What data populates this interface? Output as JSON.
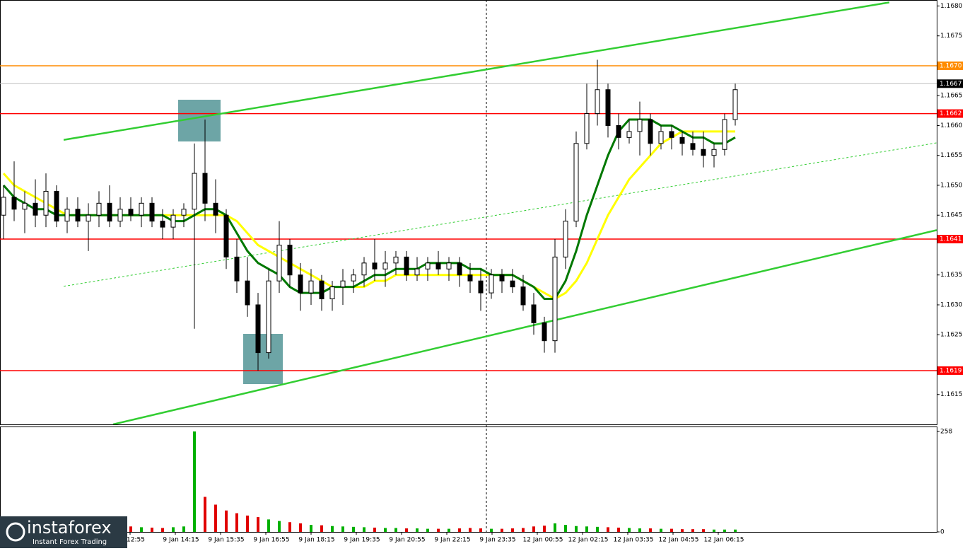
{
  "chart_data": {
    "type": "candlestick",
    "ylim": [
      1.161,
      1.1681
    ],
    "yticks": [
      {
        "value": 1.168,
        "label": "1.1680"
      },
      1.1675,
      1.1665,
      {
        "value": 1.166,
        "label": "1.1660"
      },
      1.1655,
      {
        "value": 1.165,
        "label": "1.1650"
      },
      1.1645,
      1.1635,
      {
        "value": 1.163,
        "label": "1.1630"
      },
      1.1625,
      1.1615
    ],
    "levels": [
      {
        "value": 1.167,
        "label": "1.1670",
        "color": "#ff8c00"
      },
      {
        "value": 1.1667,
        "label": "1.1667",
        "color": "#000000"
      },
      {
        "value": 1.1662,
        "label": "1.1662",
        "color": "#ff0000"
      },
      {
        "value": 1.1641,
        "label": "1.1641",
        "color": "#ff0000"
      },
      {
        "value": 1.1619,
        "label": "1.1619",
        "color": "#ff0000"
      }
    ],
    "xtick_labels": [
      "12:55",
      "9 Jan 14:15",
      "9 Jan 15:35",
      "9 Jan 16:55",
      "9 Jan 18:15",
      "9 Jan 19:35",
      "9 Jan 20:55",
      "9 Jan 22:15",
      "9 Jan 23:35",
      "12 Jan 00:55",
      "12 Jan 02:15",
      "12 Jan 03:35",
      "12 Jan 04:55",
      "12 Jan 06:15"
    ],
    "open": [
      1.1645,
      1.1648,
      1.1646,
      1.1647,
      1.1645,
      1.1649,
      1.1644,
      1.1646,
      1.1644,
      1.1645,
      1.1647,
      1.1644,
      1.1646,
      1.1645,
      1.1647,
      1.1644,
      1.1643,
      1.1645,
      1.1646,
      1.1652,
      1.1647,
      1.1645,
      1.1638,
      1.1634,
      1.163,
      1.1622,
      1.1634,
      1.164,
      1.1635,
      1.1632,
      1.1634,
      1.1631,
      1.1633,
      1.1634,
      1.1635,
      1.1637,
      1.1636,
      1.1637,
      1.1638,
      1.1635,
      1.1636,
      1.1637,
      1.1636,
      1.1637,
      1.1635,
      1.1634,
      1.1632,
      1.1635,
      1.1634,
      1.1633,
      1.163,
      1.1627,
      1.1624,
      1.1638,
      1.1644,
      1.1657,
      1.1662,
      1.1666,
      1.166,
      1.1658,
      1.1659,
      1.1661,
      1.1657,
      1.1659,
      1.1658,
      1.1657,
      1.1656,
      1.1655,
      1.1656,
      1.1661
    ],
    "high": [
      1.165,
      1.1654,
      1.1649,
      1.1651,
      1.1652,
      1.165,
      1.1648,
      1.1648,
      1.1647,
      1.1649,
      1.165,
      1.1648,
      1.1648,
      1.1648,
      1.1648,
      1.1646,
      1.1646,
      1.1647,
      1.1657,
      1.1661,
      1.1651,
      1.1646,
      1.1641,
      1.1638,
      1.1632,
      1.1636,
      1.1644,
      1.1641,
      1.1637,
      1.1636,
      1.1635,
      1.1634,
      1.1636,
      1.1636,
      1.1638,
      1.1641,
      1.1639,
      1.1639,
      1.1639,
      1.1638,
      1.1638,
      1.1639,
      1.1638,
      1.1638,
      1.1637,
      1.1636,
      1.1636,
      1.1636,
      1.1636,
      1.1635,
      1.1632,
      1.1628,
      1.1641,
      1.1646,
      1.1659,
      1.1667,
      1.1671,
      1.1667,
      1.1662,
      1.1661,
      1.1664,
      1.1662,
      1.166,
      1.166,
      1.1659,
      1.1659,
      1.1659,
      1.1657,
      1.1662,
      1.1667
    ],
    "low": [
      1.1641,
      1.1644,
      1.1642,
      1.1643,
      1.1643,
      1.1643,
      1.1642,
      1.1643,
      1.1639,
      1.1643,
      1.1643,
      1.1643,
      1.1644,
      1.1643,
      1.1643,
      1.1641,
      1.1641,
      1.1643,
      1.1626,
      1.1644,
      1.1642,
      1.1636,
      1.1632,
      1.1628,
      1.1619,
      1.1621,
      1.1632,
      1.1633,
      1.1629,
      1.163,
      1.1629,
      1.1629,
      1.163,
      1.1632,
      1.1633,
      1.1634,
      1.1633,
      1.1635,
      1.1634,
      1.1634,
      1.1634,
      1.1635,
      1.1634,
      1.1633,
      1.1632,
      1.1629,
      1.1631,
      1.1632,
      1.1632,
      1.1629,
      1.1625,
      1.1622,
      1.1622,
      1.1636,
      1.1643,
      1.1656,
      1.166,
      1.1658,
      1.1656,
      1.1657,
      1.1655,
      1.1655,
      1.1656,
      1.1656,
      1.1655,
      1.1655,
      1.1653,
      1.1653,
      1.1655,
      1.166
    ],
    "close": [
      1.1648,
      1.1646,
      1.1647,
      1.1645,
      1.1649,
      1.1644,
      1.1646,
      1.1644,
      1.1645,
      1.1647,
      1.1644,
      1.1646,
      1.1645,
      1.1647,
      1.1644,
      1.1643,
      1.1645,
      1.1646,
      1.1652,
      1.1647,
      1.1645,
      1.1638,
      1.1634,
      1.163,
      1.1622,
      1.1634,
      1.164,
      1.1635,
      1.1632,
      1.1634,
      1.1631,
      1.1633,
      1.1634,
      1.1635,
      1.1637,
      1.1636,
      1.1637,
      1.1638,
      1.1635,
      1.1636,
      1.1637,
      1.1636,
      1.1637,
      1.1635,
      1.1634,
      1.1632,
      1.1635,
      1.1634,
      1.1633,
      1.163,
      1.1627,
      1.1624,
      1.1638,
      1.1644,
      1.1657,
      1.1662,
      1.1666,
      1.166,
      1.1658,
      1.1659,
      1.1661,
      1.1657,
      1.1659,
      1.1658,
      1.1657,
      1.1656,
      1.1655,
      1.1656,
      1.1661,
      1.1666
    ],
    "moving_averages": [
      {
        "color": "#ffff00",
        "values": [
          1.1652,
          1.165,
          1.1649,
          1.1648,
          1.1647,
          1.1646,
          1.1645,
          1.1645,
          1.1645,
          1.1645,
          1.1645,
          1.1645,
          1.1645,
          1.1645,
          1.1645,
          1.1645,
          1.1645,
          1.1645,
          1.1645,
          1.1645,
          1.1645,
          1.1645,
          1.1644,
          1.1642,
          1.164,
          1.1639,
          1.1638,
          1.1637,
          1.1636,
          1.1635,
          1.1634,
          1.1633,
          1.1633,
          1.1633,
          1.1633,
          1.1634,
          1.1634,
          1.1635,
          1.1635,
          1.1635,
          1.1635,
          1.1635,
          1.1635,
          1.1635,
          1.1635,
          1.1635,
          1.1635,
          1.1635,
          1.1635,
          1.1634,
          1.1633,
          1.1632,
          1.1631,
          1.1632,
          1.1634,
          1.1637,
          1.1641,
          1.1645,
          1.1648,
          1.1651,
          1.1653,
          1.1655,
          1.1657,
          1.1658,
          1.1659,
          1.1659,
          1.1659,
          1.1659,
          1.1659,
          1.1659
        ]
      },
      {
        "color": "#007800",
        "values": [
          1.165,
          1.1648,
          1.1647,
          1.1646,
          1.1646,
          1.1645,
          1.1645,
          1.1645,
          1.1645,
          1.1645,
          1.1645,
          1.1645,
          1.1645,
          1.1645,
          1.1645,
          1.1645,
          1.1644,
          1.1644,
          1.1645,
          1.1646,
          1.1646,
          1.1645,
          1.1642,
          1.1639,
          1.1637,
          1.1636,
          1.1635,
          1.1633,
          1.1632,
          1.1632,
          1.1632,
          1.1633,
          1.1633,
          1.1633,
          1.1634,
          1.1635,
          1.1635,
          1.1636,
          1.1636,
          1.1636,
          1.1637,
          1.1637,
          1.1637,
          1.1637,
          1.1636,
          1.1636,
          1.1635,
          1.1635,
          1.1635,
          1.1634,
          1.1633,
          1.1631,
          1.1631,
          1.1634,
          1.1639,
          1.1645,
          1.165,
          1.1655,
          1.1659,
          1.1661,
          1.1661,
          1.1661,
          1.166,
          1.166,
          1.1659,
          1.1658,
          1.1658,
          1.1657,
          1.1657,
          1.1658
        ]
      }
    ],
    "trend_lines": [
      {
        "x": [
          5.67,
          83.53
        ],
        "y": [
          1.16576,
          1.16806
        ],
        "color": "#32cd32",
        "dashed": false
      },
      {
        "x": [
          10.33,
          88
        ],
        "y": [
          1.161,
          1.16425
        ],
        "color": "#32cd32",
        "dashed": false
      },
      {
        "x": [
          5.67,
          88
        ],
        "y": [
          1.16331,
          1.16571
        ],
        "color": "#32cd32",
        "dashed": true
      }
    ],
    "volume": [
      8,
      10,
      12,
      10,
      9,
      11,
      10,
      9,
      10,
      11,
      12,
      13,
      14,
      12,
      11,
      10,
      12,
      14,
      258,
      90,
      70,
      55,
      48,
      42,
      38,
      32,
      28,
      25,
      22,
      18,
      17,
      15,
      14,
      13,
      12,
      11,
      10,
      10,
      9,
      9,
      8,
      8,
      8,
      9,
      10,
      9,
      8,
      8,
      9,
      10,
      14,
      16,
      22,
      18,
      15,
      14,
      13,
      12,
      11,
      10,
      9,
      9,
      8,
      8,
      7,
      7,
      7,
      6,
      6,
      6
    ],
    "volume_ylim": [
      0,
      258
    ],
    "volume_yticks": [
      0,
      258
    ]
  },
  "branding": {
    "name": "instaforex",
    "tagline": "Instant Forex Trading"
  }
}
